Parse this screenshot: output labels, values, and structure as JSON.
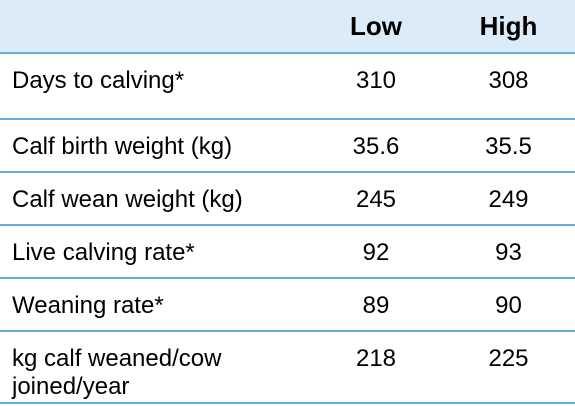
{
  "table": {
    "headers": [
      "",
      "Low",
      "High"
    ],
    "rows": [
      {
        "label": "Days to calving*",
        "low": "310",
        "high": "308"
      },
      {
        "label": "Calf birth weight (kg)",
        "low": "35.6",
        "high": "35.5"
      },
      {
        "label": "Calf wean weight (kg)",
        "low": "245",
        "high": "249"
      },
      {
        "label": "Live calving rate*",
        "low": "92",
        "high": "93"
      },
      {
        "label": "Weaning rate*",
        "low": "89",
        "high": "90"
      },
      {
        "label": "kg calf weaned/cow joined/year",
        "low": "218",
        "high": "225"
      }
    ]
  },
  "colors": {
    "header_background": "#dcebf8",
    "rule_color": "#62aee0"
  }
}
